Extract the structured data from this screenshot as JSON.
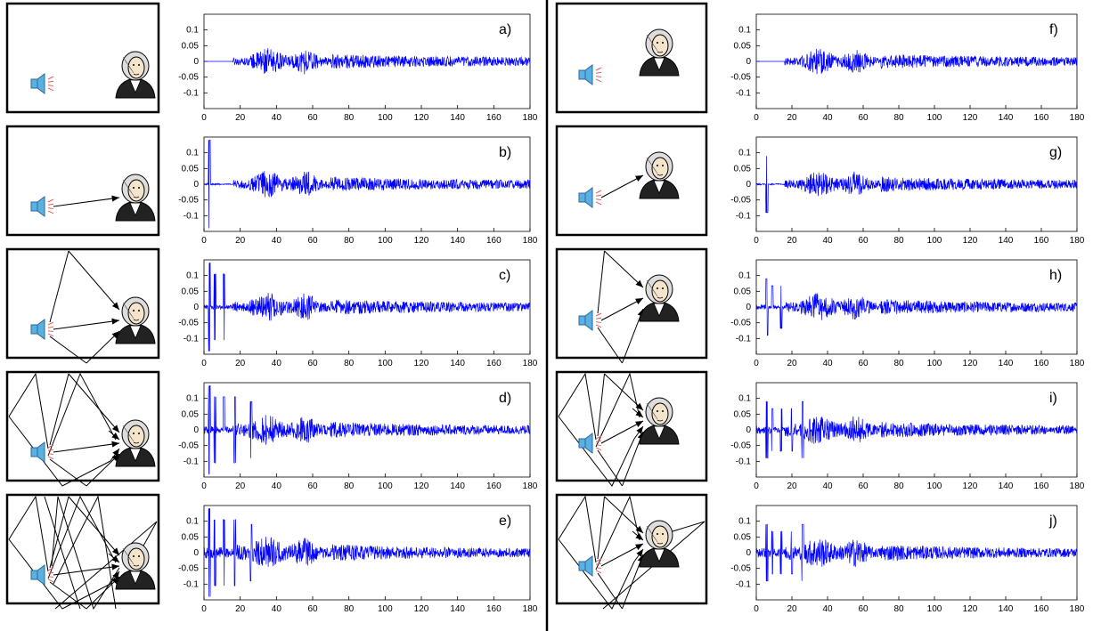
{
  "axes": {
    "x_ticks": [
      "0",
      "20",
      "40",
      "60",
      "80",
      "100",
      "120",
      "140",
      "160",
      "180"
    ],
    "y_ticks": [
      "0.1",
      "0.05",
      "0",
      "-0.05",
      "-0.1"
    ]
  },
  "plot_labels": [
    "a)",
    "b)",
    "c)",
    "d)",
    "e)",
    "f)",
    "g)",
    "h)",
    "i)",
    "j)"
  ],
  "colors": {
    "signal": "#0000ff",
    "frame": "#000000",
    "axis": "#000000",
    "speaker_body": "#5ab0e0",
    "sound_waves": "#e06060"
  },
  "icons": [
    "speaker-icon",
    "portrait-icon"
  ],
  "chart_data": [
    {
      "type": "line",
      "label": "a)",
      "xlim": [
        0,
        180
      ],
      "ylim": [
        -0.15,
        0.15
      ],
      "echo_count": 0,
      "direct_peak": 0,
      "amplitude_note": "no early reflections"
    },
    {
      "type": "line",
      "label": "b)",
      "xlim": [
        0,
        180
      ],
      "ylim": [
        -0.15,
        0.15
      ],
      "echo_count": 1,
      "direct_peak": [
        3,
        0.14
      ]
    },
    {
      "type": "line",
      "label": "c)",
      "xlim": [
        0,
        180
      ],
      "ylim": [
        -0.15,
        0.15
      ],
      "echo_count": 3,
      "direct_peak": [
        3,
        0.14
      ]
    },
    {
      "type": "line",
      "label": "d)",
      "xlim": [
        0,
        180
      ],
      "ylim": [
        -0.15,
        0.15
      ],
      "echo_count": 5,
      "direct_peak": [
        3,
        0.14
      ]
    },
    {
      "type": "line",
      "label": "e)",
      "xlim": [
        0,
        180
      ],
      "ylim": [
        -0.15,
        0.15
      ],
      "echo_count": 8,
      "direct_peak": [
        3,
        0.14
      ]
    },
    {
      "type": "line",
      "label": "f)",
      "xlim": [
        0,
        180
      ],
      "ylim": [
        -0.15,
        0.15
      ],
      "echo_count": 0,
      "direct_peak": 0,
      "amplitude_note": "no early reflections"
    },
    {
      "type": "line",
      "label": "g)",
      "xlim": [
        0,
        180
      ],
      "ylim": [
        -0.15,
        0.15
      ],
      "echo_count": 1,
      "direct_peak": [
        6,
        0.09
      ]
    },
    {
      "type": "line",
      "label": "h)",
      "xlim": [
        0,
        180
      ],
      "ylim": [
        -0.15,
        0.15
      ],
      "echo_count": 3,
      "direct_peak": [
        6,
        0.09
      ]
    },
    {
      "type": "line",
      "label": "i)",
      "xlim": [
        0,
        180
      ],
      "ylim": [
        -0.15,
        0.15
      ],
      "echo_count": 5,
      "direct_peak": [
        6,
        0.09
      ]
    },
    {
      "type": "line",
      "label": "j)",
      "xlim": [
        0,
        180
      ],
      "ylim": [
        -0.15,
        0.15
      ],
      "echo_count": 6,
      "direct_peak": [
        6,
        0.09
      ]
    }
  ]
}
